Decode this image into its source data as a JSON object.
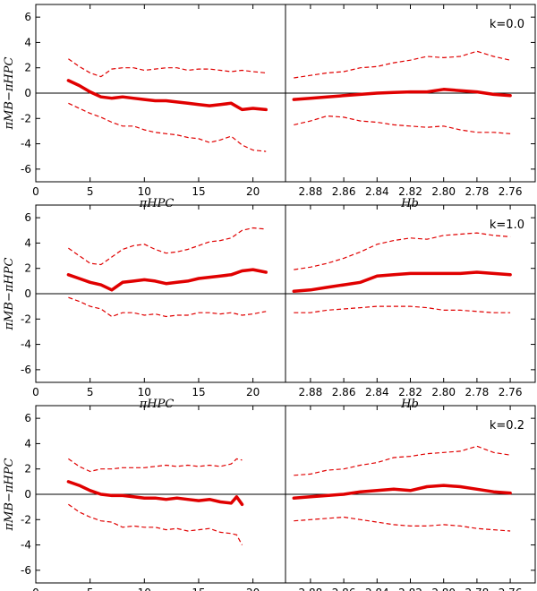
{
  "chart_data": {
    "type": "line",
    "layout": "3 rows x 2 columns, shared y axis",
    "ylim": [
      -7,
      7
    ],
    "yticks": [
      -6,
      -4,
      -2,
      0,
      2,
      4,
      6
    ],
    "ylabel": "πMB−πHPC",
    "left_panel": {
      "xlabel": "πHPC",
      "xlim": [
        0,
        23
      ],
      "xticks": [
        0,
        5,
        10,
        15,
        20
      ]
    },
    "right_panel": {
      "xlabel": "Hb",
      "xlim": [
        2.895,
        2.745
      ],
      "xticks": [
        2.88,
        2.86,
        2.84,
        2.82,
        2.8,
        2.78,
        2.76
      ]
    },
    "rows": [
      {
        "annotation": "k=0.0",
        "left": {
          "x": [
            3,
            4,
            5,
            6,
            7,
            8,
            9,
            10,
            11,
            12,
            13,
            14,
            15,
            16,
            17,
            18,
            19,
            20,
            21.2
          ],
          "mean": [
            1.0,
            0.6,
            0.1,
            -0.3,
            -0.4,
            -0.3,
            -0.4,
            -0.5,
            -0.6,
            -0.6,
            -0.7,
            -0.8,
            -0.9,
            -1.0,
            -0.9,
            -0.8,
            -1.3,
            -1.2,
            -1.3
          ],
          "upper": [
            2.7,
            2.1,
            1.6,
            1.3,
            1.9,
            2.0,
            2.0,
            1.8,
            1.9,
            2.0,
            2.0,
            1.8,
            1.9,
            1.9,
            1.8,
            1.7,
            1.8,
            1.7,
            1.6
          ],
          "lower": [
            -0.8,
            -1.2,
            -1.6,
            -1.9,
            -2.3,
            -2.6,
            -2.6,
            -2.9,
            -3.1,
            -3.2,
            -3.3,
            -3.5,
            -3.6,
            -3.9,
            -3.7,
            -3.4,
            -4.1,
            -4.5,
            -4.6
          ]
        },
        "right": {
          "x": [
            2.89,
            2.88,
            2.87,
            2.86,
            2.85,
            2.84,
            2.83,
            2.82,
            2.81,
            2.8,
            2.79,
            2.78,
            2.77,
            2.76
          ],
          "mean": [
            -0.5,
            -0.4,
            -0.3,
            -0.2,
            -0.1,
            0.0,
            0.05,
            0.1,
            0.1,
            0.3,
            0.2,
            0.1,
            -0.1,
            -0.2
          ],
          "upper": [
            1.2,
            1.4,
            1.6,
            1.7,
            2.0,
            2.1,
            2.4,
            2.6,
            2.9,
            2.8,
            2.9,
            3.3,
            2.9,
            2.6
          ],
          "lower": [
            -2.5,
            -2.2,
            -1.8,
            -1.9,
            -2.2,
            -2.3,
            -2.5,
            -2.6,
            -2.7,
            -2.6,
            -2.9,
            -3.1,
            -3.1,
            -3.2
          ]
        }
      },
      {
        "annotation": "k=1.0",
        "left": {
          "x": [
            3,
            4,
            5,
            6,
            7,
            8,
            9,
            10,
            11,
            12,
            13,
            14,
            15,
            16,
            17,
            18,
            19,
            20,
            21.2
          ],
          "mean": [
            1.5,
            1.2,
            0.9,
            0.7,
            0.3,
            0.9,
            1.0,
            1.1,
            1.0,
            0.8,
            0.9,
            1.0,
            1.2,
            1.3,
            1.4,
            1.5,
            1.8,
            1.9,
            1.7
          ],
          "upper": [
            3.6,
            3.0,
            2.4,
            2.3,
            2.9,
            3.5,
            3.8,
            3.9,
            3.5,
            3.2,
            3.3,
            3.5,
            3.8,
            4.1,
            4.2,
            4.4,
            5.0,
            5.2,
            5.1
          ],
          "lower": [
            -0.3,
            -0.6,
            -1.0,
            -1.2,
            -1.8,
            -1.5,
            -1.5,
            -1.7,
            -1.6,
            -1.8,
            -1.7,
            -1.7,
            -1.5,
            -1.5,
            -1.6,
            -1.5,
            -1.7,
            -1.6,
            -1.4
          ]
        },
        "right": {
          "x": [
            2.89,
            2.88,
            2.87,
            2.86,
            2.85,
            2.84,
            2.83,
            2.82,
            2.81,
            2.8,
            2.79,
            2.78,
            2.77,
            2.76
          ],
          "mean": [
            0.2,
            0.3,
            0.5,
            0.7,
            0.9,
            1.4,
            1.5,
            1.6,
            1.6,
            1.6,
            1.6,
            1.7,
            1.6,
            1.5
          ],
          "upper": [
            1.9,
            2.1,
            2.4,
            2.8,
            3.3,
            3.9,
            4.2,
            4.4,
            4.3,
            4.6,
            4.7,
            4.8,
            4.6,
            4.5
          ],
          "lower": [
            -1.5,
            -1.5,
            -1.3,
            -1.2,
            -1.1,
            -1.0,
            -1.0,
            -1.0,
            -1.1,
            -1.3,
            -1.3,
            -1.4,
            -1.5,
            -1.5
          ]
        }
      },
      {
        "annotation": "k=0.2",
        "left": {
          "x": [
            3,
            4,
            5,
            6,
            7,
            8,
            9,
            10,
            11,
            12,
            13,
            14,
            15,
            16,
            17,
            18,
            18.5,
            19
          ],
          "mean": [
            1.0,
            0.7,
            0.3,
            0.0,
            -0.1,
            -0.1,
            -0.2,
            -0.3,
            -0.3,
            -0.4,
            -0.3,
            -0.4,
            -0.5,
            -0.4,
            -0.6,
            -0.7,
            -0.2,
            -0.8
          ],
          "upper": [
            2.8,
            2.2,
            1.8,
            2.0,
            2.0,
            2.1,
            2.1,
            2.1,
            2.2,
            2.3,
            2.2,
            2.3,
            2.2,
            2.3,
            2.2,
            2.4,
            2.8,
            2.7
          ],
          "lower": [
            -0.8,
            -1.4,
            -1.8,
            -2.1,
            -2.2,
            -2.6,
            -2.5,
            -2.6,
            -2.6,
            -2.8,
            -2.7,
            -2.9,
            -2.8,
            -2.7,
            -3.0,
            -3.1,
            -3.2,
            -4.0
          ]
        },
        "right": {
          "x": [
            2.89,
            2.88,
            2.87,
            2.86,
            2.85,
            2.84,
            2.83,
            2.82,
            2.81,
            2.8,
            2.79,
            2.78,
            2.77,
            2.76
          ],
          "mean": [
            -0.3,
            -0.2,
            -0.1,
            0.0,
            0.2,
            0.3,
            0.4,
            0.3,
            0.6,
            0.7,
            0.6,
            0.4,
            0.2,
            0.1
          ],
          "upper": [
            1.5,
            1.6,
            1.9,
            2.0,
            2.3,
            2.5,
            2.9,
            3.0,
            3.2,
            3.3,
            3.4,
            3.8,
            3.3,
            3.1
          ],
          "lower": [
            -2.1,
            -2.0,
            -1.9,
            -1.8,
            -2.0,
            -2.2,
            -2.4,
            -2.5,
            -2.5,
            -2.4,
            -2.5,
            -2.7,
            -2.8,
            -2.9
          ]
        }
      }
    ]
  }
}
